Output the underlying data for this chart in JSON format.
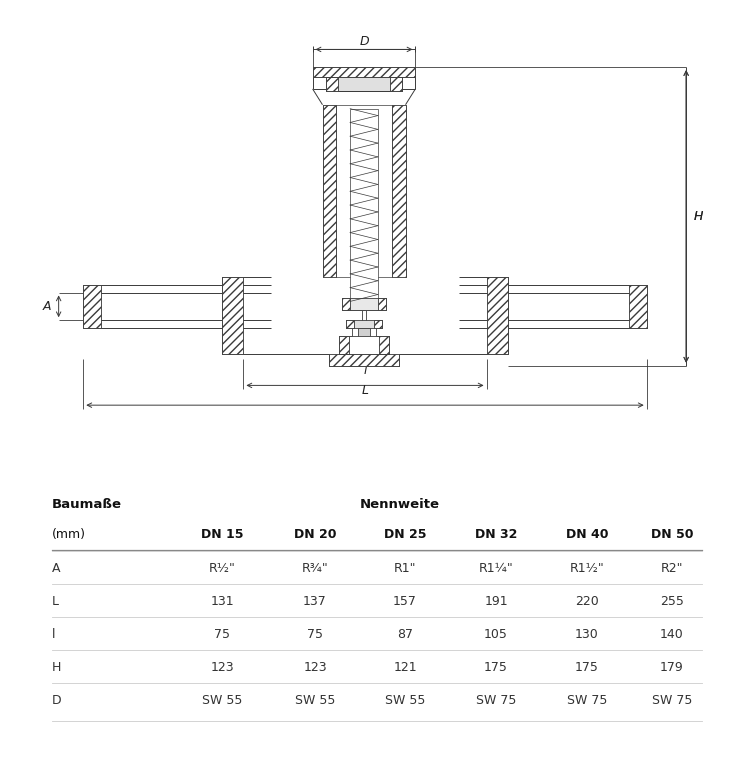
{
  "bg_color": "#ffffff",
  "line_color": "#3a3a3a",
  "dim_color": "#3a3a3a",
  "table_header1": "Baumаße",
  "table_header2": "Nennweite",
  "col_header_row": [
    "(mm)",
    "DN 15",
    "DN 20",
    "DN 25",
    "DN 32",
    "DN 40",
    "DN 50"
  ],
  "rows": [
    [
      "A",
      "R½\"",
      "R¾\"",
      "R1\"",
      "R1¼\"",
      "R1½\"",
      "R2\""
    ],
    [
      "L",
      "131",
      "137",
      "157",
      "191",
      "220",
      "255"
    ],
    [
      "l",
      "75",
      "75",
      "87",
      "105",
      "130",
      "140"
    ],
    [
      "H",
      "123",
      "123",
      "121",
      "175",
      "175",
      "179"
    ],
    [
      "D",
      "SW 55",
      "SW 55",
      "SW 55",
      "SW 75",
      "SW 75",
      "SW 75"
    ]
  ],
  "figure_width": 7.29,
  "figure_height": 7.81,
  "dpi": 100
}
